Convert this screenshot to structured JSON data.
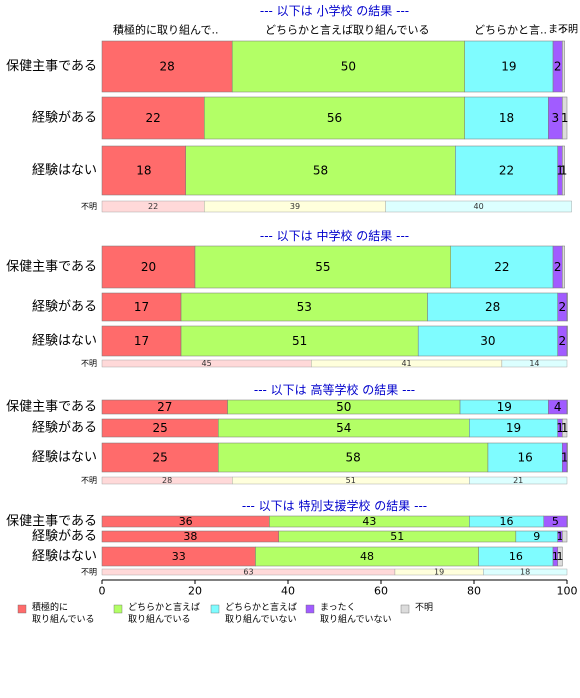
{
  "chart_data": {
    "type": "bar",
    "orientation": "horizontal",
    "stacked": true,
    "xlim": [
      0,
      100
    ],
    "x_ticks": [
      "0",
      "20",
      "40",
      "60",
      "80",
      "100"
    ],
    "grid": false,
    "legend_position": "bottom",
    "column_headers": [
      "積極的に取り組んで..",
      "どちらかと言えば取り組んでいる",
      "どちらかと言..",
      "まっ..",
      "不明"
    ],
    "legend": [
      {
        "label": "積極的に 取り組んでいる",
        "color": "#ff6b6b"
      },
      {
        "label": "どちらかと言えば 取り組んでいる",
        "color": "#b3ff66"
      },
      {
        "label": "どちらかと言えば 取り組んでいない",
        "color": "#7ffcff"
      },
      {
        "label": "まったく 取り組んでいない",
        "color": "#a15cff"
      },
      {
        "label": "不明",
        "color": "#dcdcdc"
      }
    ],
    "unknown_colors": [
      "#ffd9d9",
      "#ffffdc",
      "#dcffff"
    ],
    "panels": [
      {
        "title": "--- 以下は 小学校 の結果 ---",
        "rows": [
          {
            "label": "保健主事である",
            "values": [
              28,
              50,
              19,
              2,
              0.5
            ],
            "labels": [
              "28",
              "50",
              "19",
              "2",
              ""
            ]
          },
          {
            "label": "経験がある",
            "values": [
              22,
              56,
              18,
              3,
              1
            ],
            "labels": [
              "22",
              "56",
              "18",
              "3",
              "1"
            ]
          },
          {
            "label": "経験はない",
            "values": [
              18,
              58,
              22,
              1,
              0.5
            ],
            "labels": [
              "18",
              "58",
              "22",
              "1",
              "1"
            ]
          }
        ],
        "unknown": {
          "label": "不明",
          "values": [
            22,
            39,
            40
          ],
          "labels": [
            "22",
            "39",
            "40"
          ]
        }
      },
      {
        "title": "--- 以下は 中学校 の結果 ---",
        "rows": [
          {
            "label": "保健主事である",
            "values": [
              20,
              55,
              22,
              2,
              0.5
            ],
            "labels": [
              "20",
              "55",
              "22",
              "2",
              ""
            ]
          },
          {
            "label": "経験がある",
            "values": [
              17,
              53,
              28,
              2,
              0.5
            ],
            "labels": [
              "17",
              "53",
              "28",
              "2",
              ""
            ]
          },
          {
            "label": "経験はない",
            "values": [
              17,
              51,
              30,
              2,
              0.5
            ],
            "labels": [
              "17",
              "51",
              "30",
              "2",
              ""
            ]
          }
        ],
        "unknown": {
          "label": "不明",
          "values": [
            45,
            41,
            14
          ],
          "labels": [
            "45",
            "41",
            "14"
          ]
        }
      },
      {
        "title": "--- 以下は 高等学校 の結果 ---",
        "rows": [
          {
            "label": "保健主事である",
            "values": [
              27,
              50,
              19,
              4,
              0.5
            ],
            "labels": [
              "27",
              "50",
              "19",
              "4",
              ""
            ]
          },
          {
            "label": "経験がある",
            "values": [
              25,
              54,
              19,
              1,
              1
            ],
            "labels": [
              "25",
              "54",
              "19",
              "1",
              "1"
            ]
          },
          {
            "label": "経験はない",
            "values": [
              25,
              58,
              16,
              1,
              0.5
            ],
            "labels": [
              "25",
              "58",
              "16",
              "1",
              ""
            ]
          }
        ],
        "unknown": {
          "label": "不明",
          "values": [
            28,
            51,
            21
          ],
          "labels": [
            "28",
            "51",
            "21"
          ]
        }
      },
      {
        "title": "--- 以下は 特別支援学校 の結果 ---",
        "rows": [
          {
            "label": "保健主事である",
            "values": [
              36,
              43,
              16,
              5,
              0.5
            ],
            "labels": [
              "36",
              "43",
              "16",
              "5",
              ""
            ]
          },
          {
            "label": "経験がある",
            "values": [
              38,
              51,
              9,
              1,
              1
            ],
            "labels": [
              "38",
              "51",
              "9",
              "1",
              ""
            ]
          },
          {
            "label": "経験はない",
            "values": [
              33,
              48,
              16,
              1,
              1
            ],
            "labels": [
              "33",
              "48",
              "16",
              "1",
              "1"
            ]
          }
        ],
        "unknown": {
          "label": "不明",
          "values": [
            63,
            19,
            18
          ],
          "labels": [
            "63",
            "19",
            "18"
          ]
        }
      }
    ]
  }
}
